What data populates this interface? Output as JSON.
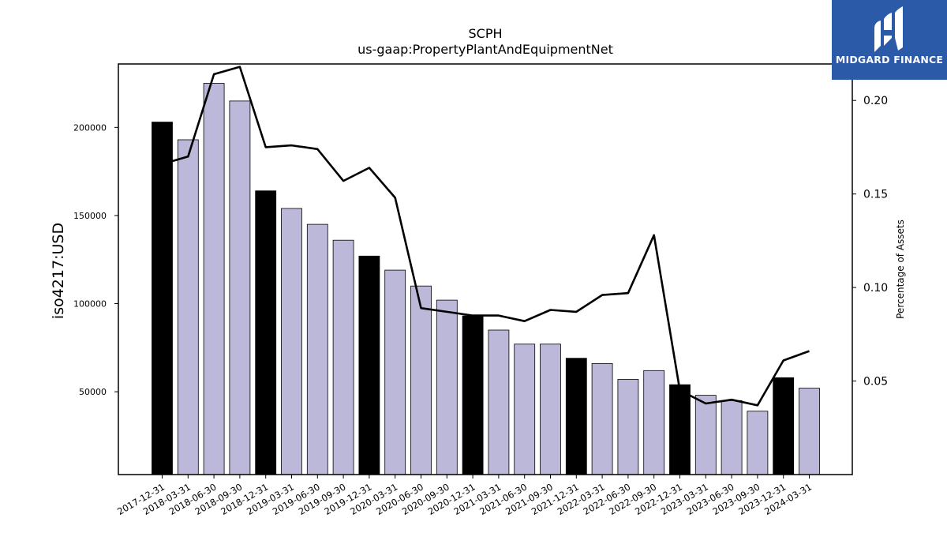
{
  "chart_data": {
    "type": "bar",
    "title": "SCPH",
    "subtitle": "us-gaap:PropertyPlantAndEquipmentNet",
    "ylabel": "iso4217:USD",
    "y2label": "Percentage of Assets",
    "ylim": [
      3000,
      236000
    ],
    "y2lim": [
      0.0,
      0.2195
    ],
    "yticks": [
      50000,
      100000,
      150000,
      200000
    ],
    "y2ticks": [
      0.05,
      0.1,
      0.15,
      0.2
    ],
    "categories": [
      "2017-12-31",
      "2018-03-31",
      "2018-06-30",
      "2018-09-30",
      "2018-12-31",
      "2019-03-31",
      "2019-06-30",
      "2019-09-30",
      "2019-12-31",
      "2020-03-31",
      "2020-06-30",
      "2020-09-30",
      "2020-12-31",
      "2021-03-31",
      "2021-06-30",
      "2021-09-30",
      "2021-12-31",
      "2022-03-31",
      "2022-06-30",
      "2022-09-30",
      "2022-12-31",
      "2023-03-31",
      "2023-06-30",
      "2023-09-30",
      "2023-12-31",
      "2024-03-31"
    ],
    "series": [
      {
        "type": "bar",
        "values": [
          203000,
          193000,
          225000,
          215000,
          164000,
          154000,
          145000,
          136000,
          127000,
          119000,
          110000,
          102000,
          93000,
          85000,
          77000,
          77000,
          69000,
          66000,
          57000,
          62000,
          54000,
          48000,
          45000,
          39000,
          58000,
          52000
        ]
      },
      {
        "type": "line",
        "axis": "right",
        "values": [
          0.166,
          0.17,
          0.214,
          0.218,
          0.175,
          0.176,
          0.174,
          0.157,
          0.164,
          0.148,
          0.089,
          0.087,
          0.085,
          0.085,
          0.082,
          0.088,
          0.087,
          0.096,
          0.097,
          0.128,
          0.045,
          0.038,
          0.04,
          0.037,
          0.061,
          0.066
        ]
      }
    ],
    "bar_colors": {
      "annual": "#000000",
      "quarterly": "#bcb8da"
    },
    "line_color": "#000000",
    "grid": false
  },
  "logo": {
    "text": "MIDGARD FINANCE",
    "color": "#2b5aa8"
  }
}
